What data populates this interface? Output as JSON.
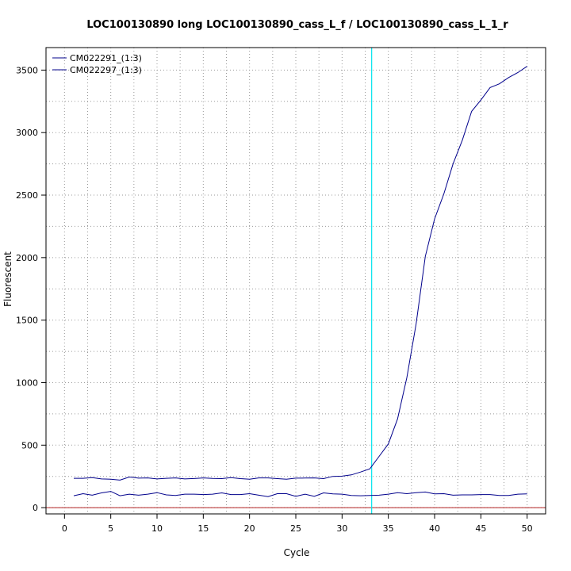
{
  "chart_data": {
    "type": "line",
    "title": "LOC100130890 long LOC100130890_cass_L_f / LOC100130890_cass_L_1_r",
    "xlabel": "Cycle",
    "ylabel": "Fluorescent",
    "xlim": [
      -2,
      52
    ],
    "ylim": [
      -50,
      3680
    ],
    "xticks": [
      0,
      5,
      10,
      15,
      20,
      25,
      30,
      35,
      40,
      45,
      50
    ],
    "yticks": [
      0,
      500,
      1000,
      1500,
      2000,
      2500,
      3000,
      3500
    ],
    "x_minor_grid": [
      2.5,
      7.5,
      12.5,
      17.5,
      22.5,
      27.5,
      32.5,
      37.5,
      42.5,
      47.5
    ],
    "y_minor_grid": [
      250,
      750,
      1250,
      1750,
      2250,
      2750,
      3250
    ],
    "grid": true,
    "threshold_x": 33.2,
    "baseline_y": 0,
    "legend_position": "top-left",
    "colors": {
      "series": "#00008b",
      "threshold": "#00e5ee",
      "baseline": "#b22222",
      "grid": "#9a9a9a"
    },
    "x": [
      1,
      2,
      3,
      4,
      5,
      6,
      7,
      8,
      9,
      10,
      11,
      12,
      13,
      14,
      15,
      16,
      17,
      18,
      19,
      20,
      21,
      22,
      23,
      24,
      25,
      26,
      27,
      28,
      29,
      30,
      31,
      32,
      33,
      34,
      35,
      36,
      37,
      38,
      39,
      40,
      41,
      42,
      43,
      44,
      45,
      46,
      47,
      48,
      49,
      50
    ],
    "series": [
      {
        "name": "CM022291_(1:3)",
        "values": [
          235,
          235,
          240,
          230,
          228,
          220,
          245,
          236,
          238,
          230,
          235,
          238,
          230,
          233,
          238,
          234,
          232,
          240,
          232,
          228,
          238,
          238,
          232,
          228,
          236,
          237,
          238,
          232,
          250,
          252,
          262,
          285,
          310,
          410,
          510,
          710,
          1040,
          1470,
          2010,
          2310,
          2510,
          2750,
          2940,
          3170,
          3260,
          3360,
          3390,
          3440,
          3480,
          3530
        ]
      },
      {
        "name": "CM022297_(1:3)",
        "values": [
          95,
          112,
          100,
          118,
          130,
          95,
          108,
          100,
          108,
          120,
          102,
          98,
          108,
          108,
          105,
          108,
          118,
          105,
          105,
          112,
          100,
          88,
          112,
          112,
          90,
          108,
          90,
          118,
          110,
          108,
          98,
          95,
          98,
          100,
          108,
          120,
          112,
          120,
          125,
          110,
          112,
          100,
          102,
          102,
          105,
          105,
          98,
          98,
          108,
          110
        ]
      }
    ]
  }
}
